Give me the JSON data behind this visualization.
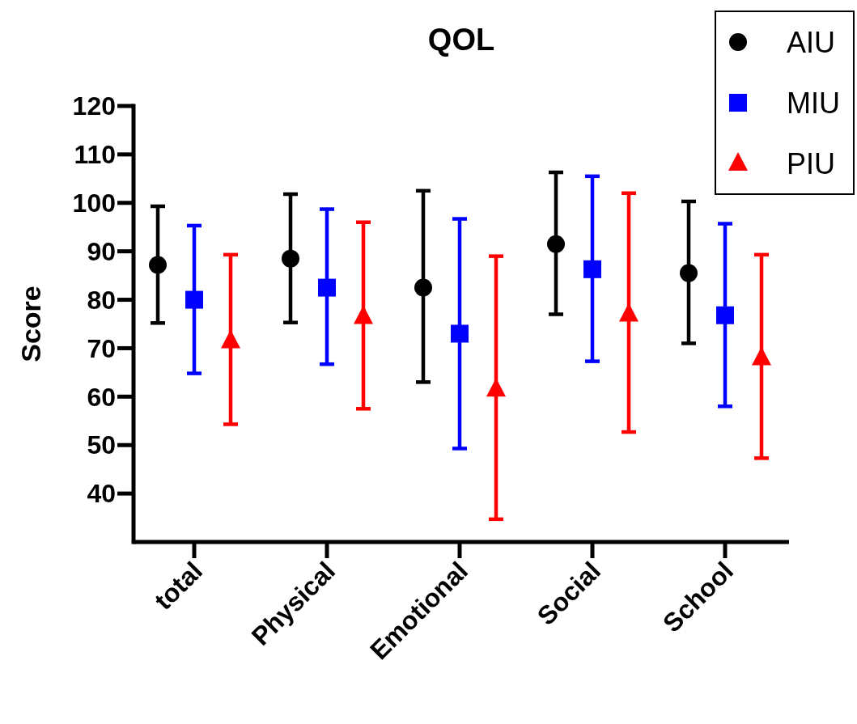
{
  "chart_data": {
    "type": "scatter",
    "title": "QOL",
    "ylabel": "Score",
    "categories": [
      "total",
      "Physical",
      "Emotional",
      "Social",
      "School"
    ],
    "ylim": [
      30,
      120
    ],
    "yticks": [
      40,
      50,
      60,
      70,
      80,
      90,
      100,
      110,
      120
    ],
    "legend": "top right",
    "grid": false,
    "series": [
      {
        "name": "AIU",
        "color": "#000000",
        "marker": "circle",
        "values": [
          87.2,
          88.5,
          82.5,
          91.5,
          85.5
        ],
        "errors": [
          [
            75.2,
            99.3
          ],
          [
            75.3,
            101.8
          ],
          [
            63,
            102.5
          ],
          [
            77,
            106.3
          ],
          [
            71,
            100.3
          ]
        ]
      },
      {
        "name": "MIU",
        "color": "#0000ff",
        "marker": "square",
        "values": [
          80,
          82.5,
          73,
          86.3,
          76.8
        ],
        "errors": [
          [
            64.8,
            95.3
          ],
          [
            66.7,
            98.7
          ],
          [
            49.3,
            96.7
          ],
          [
            67.3,
            105.5
          ],
          [
            58,
            95.7
          ]
        ]
      },
      {
        "name": "PIU",
        "color": "#ff0000",
        "marker": "triangle",
        "values": [
          71.5,
          76.5,
          61.5,
          77,
          68
        ],
        "errors": [
          [
            54.3,
            89.3
          ],
          [
            57.5,
            96
          ],
          [
            34.7,
            89
          ],
          [
            52.7,
            102
          ],
          [
            47.3,
            89.3
          ]
        ]
      }
    ]
  }
}
